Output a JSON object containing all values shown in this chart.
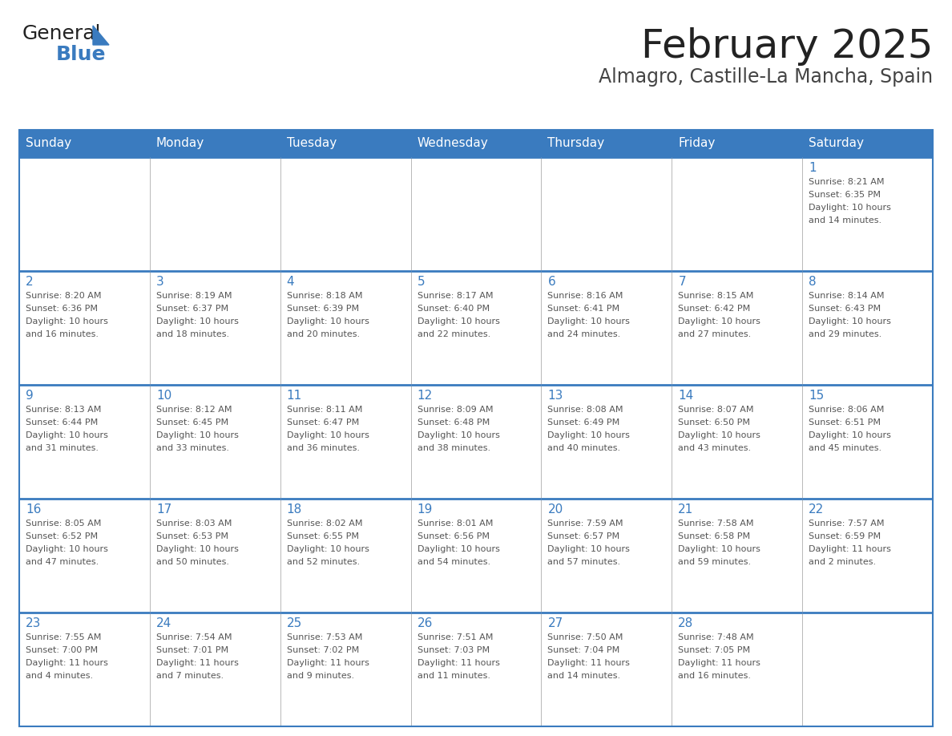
{
  "title": "February 2025",
  "subtitle": "Almagro, Castille-La Mancha, Spain",
  "header_bg_color": "#3a7bbf",
  "header_text_color": "#ffffff",
  "cell_bg_color": "#ffffff",
  "border_color": "#3a7bbf",
  "grid_color": "#aaaaaa",
  "text_color": "#555555",
  "day_number_color": "#3a7bbf",
  "days_of_week": [
    "Sunday",
    "Monday",
    "Tuesday",
    "Wednesday",
    "Thursday",
    "Friday",
    "Saturday"
  ],
  "calendar_data": [
    [
      null,
      null,
      null,
      null,
      null,
      null,
      {
        "day": 1,
        "sunrise": "8:21 AM",
        "sunset": "6:35 PM",
        "daylight1": "10 hours",
        "daylight2": "and 14 minutes."
      }
    ],
    [
      {
        "day": 2,
        "sunrise": "8:20 AM",
        "sunset": "6:36 PM",
        "daylight1": "10 hours",
        "daylight2": "and 16 minutes."
      },
      {
        "day": 3,
        "sunrise": "8:19 AM",
        "sunset": "6:37 PM",
        "daylight1": "10 hours",
        "daylight2": "and 18 minutes."
      },
      {
        "day": 4,
        "sunrise": "8:18 AM",
        "sunset": "6:39 PM",
        "daylight1": "10 hours",
        "daylight2": "and 20 minutes."
      },
      {
        "day": 5,
        "sunrise": "8:17 AM",
        "sunset": "6:40 PM",
        "daylight1": "10 hours",
        "daylight2": "and 22 minutes."
      },
      {
        "day": 6,
        "sunrise": "8:16 AM",
        "sunset": "6:41 PM",
        "daylight1": "10 hours",
        "daylight2": "and 24 minutes."
      },
      {
        "day": 7,
        "sunrise": "8:15 AM",
        "sunset": "6:42 PM",
        "daylight1": "10 hours",
        "daylight2": "and 27 minutes."
      },
      {
        "day": 8,
        "sunrise": "8:14 AM",
        "sunset": "6:43 PM",
        "daylight1": "10 hours",
        "daylight2": "and 29 minutes."
      }
    ],
    [
      {
        "day": 9,
        "sunrise": "8:13 AM",
        "sunset": "6:44 PM",
        "daylight1": "10 hours",
        "daylight2": "and 31 minutes."
      },
      {
        "day": 10,
        "sunrise": "8:12 AM",
        "sunset": "6:45 PM",
        "daylight1": "10 hours",
        "daylight2": "and 33 minutes."
      },
      {
        "day": 11,
        "sunrise": "8:11 AM",
        "sunset": "6:47 PM",
        "daylight1": "10 hours",
        "daylight2": "and 36 minutes."
      },
      {
        "day": 12,
        "sunrise": "8:09 AM",
        "sunset": "6:48 PM",
        "daylight1": "10 hours",
        "daylight2": "and 38 minutes."
      },
      {
        "day": 13,
        "sunrise": "8:08 AM",
        "sunset": "6:49 PM",
        "daylight1": "10 hours",
        "daylight2": "and 40 minutes."
      },
      {
        "day": 14,
        "sunrise": "8:07 AM",
        "sunset": "6:50 PM",
        "daylight1": "10 hours",
        "daylight2": "and 43 minutes."
      },
      {
        "day": 15,
        "sunrise": "8:06 AM",
        "sunset": "6:51 PM",
        "daylight1": "10 hours",
        "daylight2": "and 45 minutes."
      }
    ],
    [
      {
        "day": 16,
        "sunrise": "8:05 AM",
        "sunset": "6:52 PM",
        "daylight1": "10 hours",
        "daylight2": "and 47 minutes."
      },
      {
        "day": 17,
        "sunrise": "8:03 AM",
        "sunset": "6:53 PM",
        "daylight1": "10 hours",
        "daylight2": "and 50 minutes."
      },
      {
        "day": 18,
        "sunrise": "8:02 AM",
        "sunset": "6:55 PM",
        "daylight1": "10 hours",
        "daylight2": "and 52 minutes."
      },
      {
        "day": 19,
        "sunrise": "8:01 AM",
        "sunset": "6:56 PM",
        "daylight1": "10 hours",
        "daylight2": "and 54 minutes."
      },
      {
        "day": 20,
        "sunrise": "7:59 AM",
        "sunset": "6:57 PM",
        "daylight1": "10 hours",
        "daylight2": "and 57 minutes."
      },
      {
        "day": 21,
        "sunrise": "7:58 AM",
        "sunset": "6:58 PM",
        "daylight1": "10 hours",
        "daylight2": "and 59 minutes."
      },
      {
        "day": 22,
        "sunrise": "7:57 AM",
        "sunset": "6:59 PM",
        "daylight1": "11 hours",
        "daylight2": "and 2 minutes."
      }
    ],
    [
      {
        "day": 23,
        "sunrise": "7:55 AM",
        "sunset": "7:00 PM",
        "daylight1": "11 hours",
        "daylight2": "and 4 minutes."
      },
      {
        "day": 24,
        "sunrise": "7:54 AM",
        "sunset": "7:01 PM",
        "daylight1": "11 hours",
        "daylight2": "and 7 minutes."
      },
      {
        "day": 25,
        "sunrise": "7:53 AM",
        "sunset": "7:02 PM",
        "daylight1": "11 hours",
        "daylight2": "and 9 minutes."
      },
      {
        "day": 26,
        "sunrise": "7:51 AM",
        "sunset": "7:03 PM",
        "daylight1": "11 hours",
        "daylight2": "and 11 minutes."
      },
      {
        "day": 27,
        "sunrise": "7:50 AM",
        "sunset": "7:04 PM",
        "daylight1": "11 hours",
        "daylight2": "and 14 minutes."
      },
      {
        "day": 28,
        "sunrise": "7:48 AM",
        "sunset": "7:05 PM",
        "daylight1": "11 hours",
        "daylight2": "and 16 minutes."
      },
      null
    ]
  ],
  "logo_text_general": "General",
  "logo_text_blue": "Blue",
  "logo_color_general": "#222222",
  "logo_color_blue": "#3a7bbf",
  "logo_triangle_color": "#3a7bbf"
}
